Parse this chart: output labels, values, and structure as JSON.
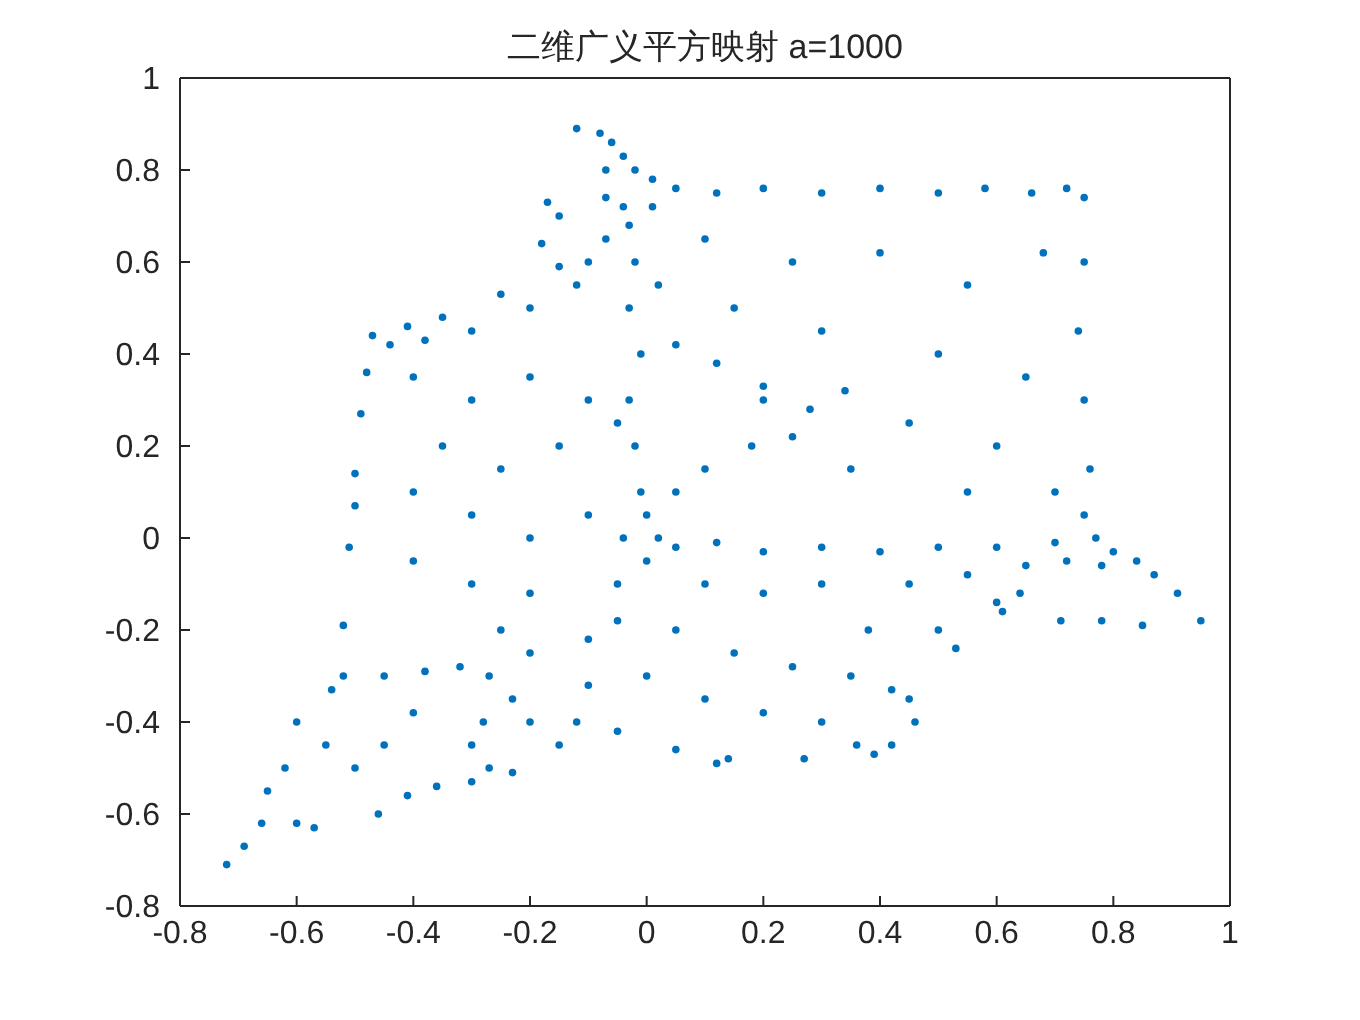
{
  "chart_data": {
    "type": "scatter",
    "title": "二维广义平方映射 a=1000",
    "color": "#0072bd",
    "marker": "circle",
    "xlim": [
      -0.8,
      1
    ],
    "ylim": [
      -0.8,
      1
    ],
    "xticks": [
      -0.8,
      -0.6,
      -0.4,
      -0.2,
      0,
      0.2,
      0.4,
      0.6,
      0.8,
      1
    ],
    "yticks": [
      -0.8,
      -0.6,
      -0.4,
      -0.2,
      0,
      0.2,
      0.4,
      0.6,
      0.8,
      1
    ],
    "x": [
      -0.08,
      -0.06,
      -0.04,
      -0.02,
      0.01,
      -0.07,
      -0.07,
      -0.04,
      -0.12,
      -0.17,
      -0.15,
      -0.18,
      -0.07,
      -0.15,
      -0.25,
      -0.35,
      -0.41,
      -0.47,
      -0.3,
      -0.2,
      -0.12,
      -0.38,
      -0.1,
      -0.44,
      -0.03,
      -0.02,
      -0.03,
      -0.01,
      -0.03,
      -0.02,
      -0.01,
      0,
      -0.04,
      0.01,
      0.02,
      -0.05,
      0.05,
      0.12,
      0.2,
      0.3,
      0.4,
      0.5,
      0.58,
      0.66,
      0.72,
      0.75,
      0.75,
      0.74,
      0.75,
      0.76,
      0.75,
      0.1,
      0.25,
      0.4,
      0.55,
      0.68,
      0.3,
      0.5,
      0.65,
      0.2,
      0.45,
      0.6,
      0.7,
      0.35,
      0.55,
      0.15,
      0.05,
      0.12,
      0.2,
      0.28,
      0.34,
      0.05,
      0.1,
      0.18,
      0.25,
      -0.48,
      -0.49,
      -0.5,
      -0.5,
      -0.51,
      -0.52,
      -0.54,
      -0.4,
      -0.3,
      -0.2,
      -0.1,
      -0.35,
      -0.25,
      -0.15,
      -0.4,
      -0.3,
      -0.2,
      -0.1,
      -0.4,
      -0.3,
      -0.2,
      -0.25,
      -0.27,
      -0.28,
      -0.27,
      -0.3,
      -0.23,
      -0.52,
      -0.45,
      -0.38,
      -0.32,
      -0.2,
      -0.1,
      -0.6,
      -0.65,
      -0.72,
      -0.69,
      -0.6,
      -0.57,
      -0.5,
      -0.46,
      -0.41,
      -0.55,
      -0.45,
      -0.4,
      -0.62,
      -0.66,
      -0.36,
      -0.3,
      -0.23,
      0.05,
      0.12,
      0.2,
      0.3,
      0.4,
      0.5,
      0.6,
      0.7,
      0.77,
      0.8,
      0.84,
      0.87,
      0.78,
      0.65,
      0.72,
      0.91,
      0.95,
      0.85,
      0.78,
      0.71,
      0.64,
      0.61,
      0.6,
      0.53,
      0.46,
      0.42,
      0.39,
      0.36,
      0.27,
      0.14,
      0.12,
      0.05,
      -0.05,
      -0.12,
      0.1,
      0.2,
      0.3,
      0.45,
      0.55,
      0.05,
      0.15,
      0.25,
      0.35,
      0.42,
      0.45,
      0.5,
      0.1,
      0.2,
      0.3,
      0,
      -0.1,
      0.38,
      0,
      -0.05,
      -0.05,
      0.02,
      -0.15,
      -0.2
    ],
    "values": [
      0.88,
      0.86,
      0.83,
      0.8,
      0.78,
      0.8,
      0.74,
      0.72,
      0.89,
      0.73,
      0.7,
      0.64,
      0.65,
      0.59,
      0.53,
      0.48,
      0.46,
      0.44,
      0.45,
      0.5,
      0.55,
      0.43,
      0.6,
      0.42,
      0.68,
      0.6,
      0.5,
      0.4,
      0.3,
      0.2,
      0.1,
      0.05,
      0,
      0.72,
      0.55,
      0.25,
      0.76,
      0.75,
      0.76,
      0.75,
      0.76,
      0.75,
      0.76,
      0.75,
      0.76,
      0.74,
      0.6,
      0.45,
      0.3,
      0.15,
      0.05,
      0.65,
      0.6,
      0.62,
      0.55,
      0.62,
      0.45,
      0.4,
      0.35,
      0.3,
      0.25,
      0.2,
      0.1,
      0.15,
      0.1,
      0.5,
      0.42,
      0.38,
      0.33,
      0.28,
      0.32,
      0.1,
      0.15,
      0.2,
      0.22,
      0.36,
      0.27,
      0.14,
      0.07,
      -0.02,
      -0.19,
      -0.33,
      0.35,
      0.3,
      0.35,
      0.3,
      0.2,
      0.15,
      0.2,
      0.1,
      0.05,
      0,
      0.05,
      -0.05,
      -0.1,
      -0.12,
      -0.2,
      -0.3,
      -0.4,
      -0.5,
      -0.45,
      -0.35,
      -0.3,
      -0.3,
      -0.29,
      -0.28,
      -0.25,
      -0.22,
      -0.4,
      -0.55,
      -0.71,
      -0.67,
      -0.62,
      -0.63,
      -0.5,
      -0.6,
      -0.56,
      -0.45,
      -0.45,
      -0.38,
      -0.5,
      -0.62,
      -0.54,
      -0.53,
      -0.51,
      -0.02,
      -0.01,
      -0.03,
      -0.02,
      -0.03,
      -0.02,
      -0.02,
      -0.01,
      0,
      -0.03,
      -0.05,
      -0.08,
      -0.06,
      -0.06,
      -0.05,
      -0.12,
      -0.18,
      -0.19,
      -0.18,
      -0.18,
      -0.12,
      -0.16,
      -0.14,
      -0.24,
      -0.4,
      -0.45,
      -0.47,
      -0.45,
      -0.48,
      -0.48,
      -0.49,
      -0.46,
      -0.42,
      -0.4,
      -0.1,
      -0.12,
      -0.1,
      -0.1,
      -0.08,
      -0.2,
      -0.25,
      -0.28,
      -0.3,
      -0.33,
      -0.35,
      -0.2,
      -0.35,
      -0.38,
      -0.4,
      -0.3,
      -0.32,
      -0.2,
      -0.05,
      -0.1,
      -0.18,
      0,
      -0.45,
      -0.4
    ]
  }
}
